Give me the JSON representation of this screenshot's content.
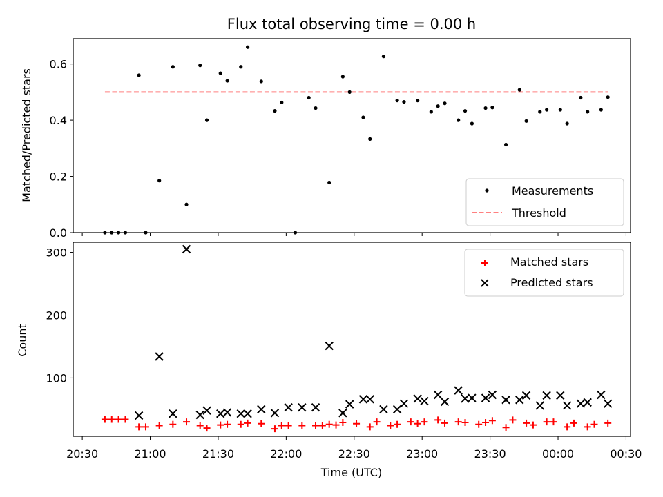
{
  "figure": {
    "title": "Flux total observing time = 0.00 h",
    "xlabel": "Time (UTC)"
  },
  "colors": {
    "measurements": "#000000",
    "threshold": "#ff8080",
    "matched": "#ff0000",
    "predicted": "#000000"
  },
  "chart_data": [
    {
      "type": "scatter",
      "ylabel": "Matched/Predicted stars",
      "ylim": [
        0,
        0.69
      ],
      "yticks": [
        0.0,
        0.2,
        0.4,
        0.6
      ],
      "xlim": [
        "20:26",
        "00:32"
      ],
      "legend_position": "lower-right",
      "grid": false,
      "series": [
        {
          "name": "Measurements",
          "type": "scatter",
          "x": [
            "20:40",
            "20:43",
            "20:46",
            "20:49",
            "20:55",
            "20:58",
            "21:04",
            "21:10",
            "21:16",
            "21:22",
            "21:25",
            "21:31",
            "21:34",
            "21:40",
            "21:43",
            "21:49",
            "21:55",
            "21:58",
            "22:04",
            "22:10",
            "22:13",
            "22:19",
            "22:25",
            "22:28",
            "22:34",
            "22:37",
            "22:43",
            "22:49",
            "22:52",
            "22:58",
            "23:04",
            "23:07",
            "23:10",
            "23:16",
            "23:19",
            "23:22",
            "23:28",
            "23:31",
            "23:37",
            "23:43",
            "23:46",
            "23:52",
            "23:55",
            "00:01",
            "00:04",
            "00:10",
            "00:13",
            "00:19",
            "00:22"
          ],
          "y": [
            0.0,
            0.0,
            0.0,
            0.0,
            0.56,
            0.0,
            0.185,
            0.59,
            0.1,
            0.595,
            0.4,
            0.567,
            0.54,
            0.59,
            0.66,
            0.538,
            0.433,
            0.463,
            0.0,
            0.48,
            0.443,
            0.178,
            0.555,
            0.5,
            0.41,
            0.333,
            0.627,
            0.47,
            0.465,
            0.47,
            0.43,
            0.45,
            0.46,
            0.4,
            0.433,
            0.388,
            0.443,
            0.445,
            0.313,
            0.508,
            0.397,
            0.43,
            0.437,
            0.437,
            0.388,
            0.48,
            0.43,
            0.437,
            0.482
          ]
        },
        {
          "name": "Threshold",
          "type": "line",
          "x": [
            "20:40",
            "00:22"
          ],
          "y": [
            0.5,
            0.5
          ]
        }
      ]
    },
    {
      "type": "scatter",
      "ylabel": "Count",
      "ylim": [
        7,
        316
      ],
      "yticks": [
        100,
        200,
        300
      ],
      "xticks": [
        "20:30",
        "21:00",
        "21:30",
        "22:00",
        "22:30",
        "23:00",
        "23:30",
        "00:00",
        "00:30"
      ],
      "legend_position": "upper-right",
      "grid": false,
      "series": [
        {
          "name": "Matched stars",
          "marker": "+",
          "x": [
            "20:40",
            "20:43",
            "20:46",
            "20:49",
            "20:58",
            "20:55",
            "21:04",
            "21:10",
            "21:16",
            "21:22",
            "21:25",
            "21:31",
            "21:34",
            "21:40",
            "21:43",
            "21:49",
            "21:55",
            "21:58",
            "22:01",
            "22:07",
            "22:13",
            "22:16",
            "22:19",
            "22:22",
            "22:25",
            "22:31",
            "22:37",
            "22:40",
            "22:46",
            "22:49",
            "22:55",
            "22:58",
            "23:01",
            "23:07",
            "23:10",
            "23:16",
            "23:19",
            "23:25",
            "23:28",
            "23:31",
            "23:37",
            "23:40",
            "23:46",
            "23:49",
            "23:55",
            "23:58",
            "00:04",
            "00:07",
            "00:13",
            "00:16",
            "00:22"
          ],
          "y": [
            34,
            34,
            34,
            34,
            22,
            22,
            24,
            26,
            30,
            24,
            20,
            25,
            26,
            26,
            28,
            27,
            19,
            24,
            24,
            24,
            24,
            24,
            26,
            25,
            29,
            27,
            22,
            30,
            24,
            26,
            30,
            27,
            30,
            33,
            28,
            30,
            29,
            26,
            29,
            32,
            21,
            33,
            28,
            25,
            30,
            30,
            22,
            28,
            22,
            26,
            28
          ]
        },
        {
          "name": "Predicted stars",
          "marker": "x",
          "x": [
            "20:55",
            "21:04",
            "21:10",
            "21:16",
            "21:22",
            "21:25",
            "21:31",
            "21:34",
            "21:40",
            "21:43",
            "21:49",
            "21:55",
            "22:01",
            "22:07",
            "22:13",
            "22:19",
            "22:25",
            "22:28",
            "22:34",
            "22:37",
            "22:43",
            "22:49",
            "22:52",
            "22:58",
            "23:01",
            "23:07",
            "23:10",
            "23:16",
            "23:19",
            "23:22",
            "23:28",
            "23:31",
            "23:37",
            "23:43",
            "23:46",
            "23:52",
            "23:55",
            "00:01",
            "00:04",
            "00:10",
            "00:13",
            "00:19",
            "00:22"
          ],
          "y": [
            40,
            134,
            43,
            305,
            41,
            48,
            43,
            45,
            43,
            43,
            50,
            44,
            53,
            53,
            53,
            151,
            44,
            58,
            66,
            66,
            50,
            50,
            59,
            67,
            63,
            73,
            62,
            80,
            67,
            68,
            68,
            73,
            65,
            65,
            72,
            56,
            72,
            72,
            56,
            59,
            61,
            73,
            59
          ]
        }
      ]
    }
  ]
}
